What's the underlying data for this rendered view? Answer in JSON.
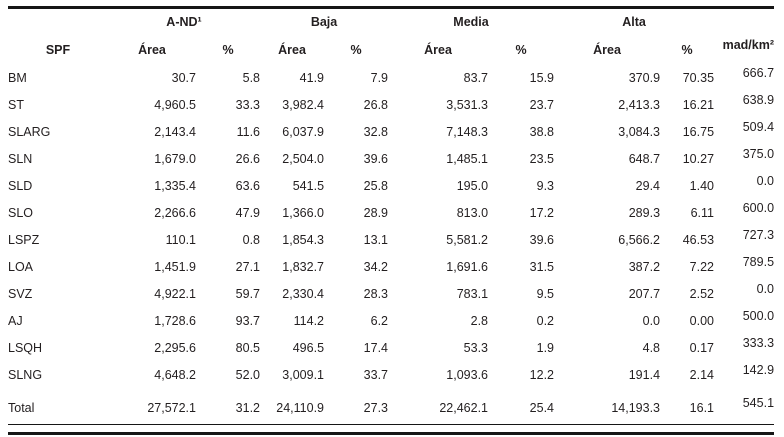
{
  "page": {
    "background": "#ffffff",
    "text_color": "#231f20",
    "rule_color": "#161616"
  },
  "table": {
    "row_header_title": "SPF",
    "groups": [
      {
        "label": "A-ND¹"
      },
      {
        "label": "Baja"
      },
      {
        "label": "Media"
      },
      {
        "label": "Alta"
      }
    ],
    "sub_headers": [
      "Área",
      "%",
      "Área",
      "%",
      "Área",
      "%",
      "Área",
      "%"
    ],
    "unit_column_label": "mad/km²",
    "rows": [
      {
        "spf": "BM",
        "cells": [
          "30.7",
          "5.8",
          "41.9",
          "7.9",
          "83.7",
          "15.9",
          "370.9",
          "70.35",
          "666.7"
        ]
      },
      {
        "spf": "ST",
        "cells": [
          "4,960.5",
          "33.3",
          "3,982.4",
          "26.8",
          "3,531.3",
          "23.7",
          "2,413.3",
          "16.21",
          "638.9"
        ]
      },
      {
        "spf": "SLARG",
        "cells": [
          "2,143.4",
          "11.6",
          "6,037.9",
          "32.8",
          "7,148.3",
          "38.8",
          "3,084.3",
          "16.75",
          "509.4"
        ]
      },
      {
        "spf": "SLN",
        "cells": [
          "1,679.0",
          "26.6",
          "2,504.0",
          "39.6",
          "1,485.1",
          "23.5",
          "648.7",
          "10.27",
          "375.0"
        ]
      },
      {
        "spf": "SLD",
        "cells": [
          "1,335.4",
          "63.6",
          "541.5",
          "25.8",
          "195.0",
          "9.3",
          "29.4",
          "1.40",
          "0.0"
        ]
      },
      {
        "spf": "SLO",
        "cells": [
          "2,266.6",
          "47.9",
          "1,366.0",
          "28.9",
          "813.0",
          "17.2",
          "289.3",
          "6.11",
          "600.0"
        ]
      },
      {
        "spf": "LSPZ",
        "cells": [
          "110.1",
          "0.8",
          "1,854.3",
          "13.1",
          "5,581.2",
          "39.6",
          "6,566.2",
          "46.53",
          "727.3"
        ]
      },
      {
        "spf": "LOA",
        "cells": [
          "1,451.9",
          "27.1",
          "1,832.7",
          "34.2",
          "1,691.6",
          "31.5",
          "387.2",
          "7.22",
          "789.5"
        ]
      },
      {
        "spf": "SVZ",
        "cells": [
          "4,922.1",
          "59.7",
          "2,330.4",
          "28.3",
          "783.1",
          "9.5",
          "207.7",
          "2.52",
          "0.0"
        ]
      },
      {
        "spf": "AJ",
        "cells": [
          "1,728.6",
          "93.7",
          "114.2",
          "6.2",
          "2.8",
          "0.2",
          "0.0",
          "0.00",
          "500.0"
        ]
      },
      {
        "spf": "LSQH",
        "cells": [
          "2,295.6",
          "80.5",
          "496.5",
          "17.4",
          "53.3",
          "1.9",
          "4.8",
          "0.17",
          "333.3"
        ]
      },
      {
        "spf": "SLNG",
        "cells": [
          "4,648.2",
          "52.0",
          "3,009.1",
          "33.7",
          "1,093.6",
          "12.2",
          "191.4",
          "2.14",
          "142.9"
        ]
      }
    ],
    "total": {
      "spf": "Total",
      "cells": [
        "27,572.1",
        "31.2",
        "24,110.9",
        "27.3",
        "22,462.1",
        "25.4",
        "14,193.3",
        "16.1",
        "545.1"
      ]
    }
  }
}
